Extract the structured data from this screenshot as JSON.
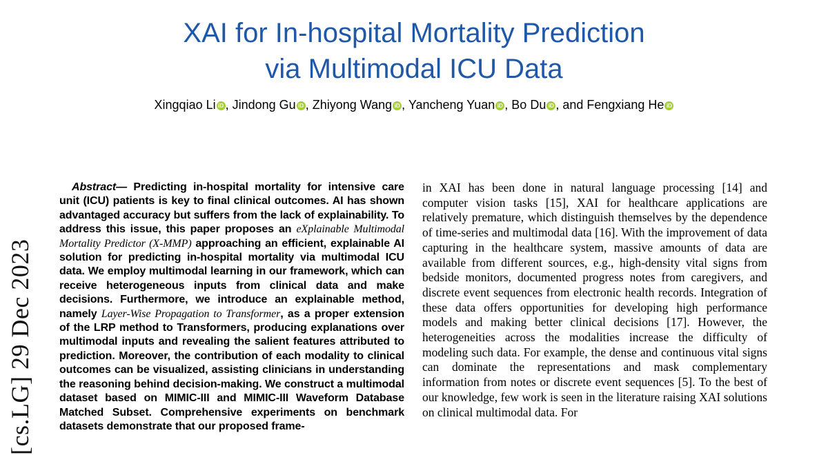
{
  "watermark": {
    "text": "[cs.LG] 29 Dec 2023"
  },
  "header": {
    "title_line1": "XAI for In-hospital Mortality Prediction",
    "title_line2": "via Multimodal ICU Data",
    "title_color": "#1f58a8"
  },
  "authors": {
    "orcid_label": "iD",
    "orcid_color": "#a6ce39",
    "list": [
      {
        "name": "Xingqiao Li",
        "sep": ", "
      },
      {
        "name": "Jindong Gu",
        "sep": ", "
      },
      {
        "name": "Zhiyong Wang",
        "sep": ", "
      },
      {
        "name": "Yancheng Yuan",
        "sep": ", "
      },
      {
        "name": "Bo Du",
        "sep": ", and "
      },
      {
        "name": "Fengxiang He",
        "sep": ""
      }
    ]
  },
  "abstract": {
    "label": "Abstract— ",
    "seg1": "Predicting in-hospital mortality for intensive care unit (ICU) patients is key to final clinical outcomes. AI has shown advantaged accuracy but suffers from the lack of explainability. To address this issue, this paper proposes an ",
    "seg2_italic": "eXplainable Multimodal Mortality Predictor (X-MMP)",
    "seg3": " approaching an efficient, explainable AI solution for predicting in-hospital mortality via multimodal ICU data. We employ multimodal learning in our framework, which can receive heterogeneous inputs from clinical data and make decisions. Furthermore, we introduce an explainable method, namely ",
    "seg4_italic": "Layer-Wise Propagation to Transformer",
    "seg5": ", as a proper extension of the LRP method to Transformers, producing explanations over multimodal inputs and revealing the salient features attributed to prediction. Moreover, the contribution of each modality to clinical outcomes can be visualized, assisting clinicians in understanding the reasoning behind decision-making. We construct a multimodal dataset based on MIMIC-III and MIMIC-III Waveform Database Matched Subset. Comprehensive experiments on benchmark datasets demonstrate that our proposed frame-"
  },
  "right_column": {
    "paragraph": "in XAI has been done in natural language processing [14] and computer vision tasks [15], XAI for healthcare applications are relatively premature, which distinguish themselves by the dependence of time-series and multimodal data [16]. With the improvement of data capturing in the healthcare system, massive amounts of data are available from different sources, e.g., high-density vital signs from bedside monitors, documented progress notes from caregivers, and discrete event sequences from electronic health records. Integration of these data offers opportunities for developing high performance models and making better clinical decisions [17]. However, the heterogeneities across the modalities increase the difficulty of modeling such data. For example, the dense and continuous vital signs can dominate the representations and mask complementary information from notes or discrete event sequences [5]. To the best of our knowledge, few work is seen in the literature raising XAI solutions on clinical multimodal data. For"
  }
}
